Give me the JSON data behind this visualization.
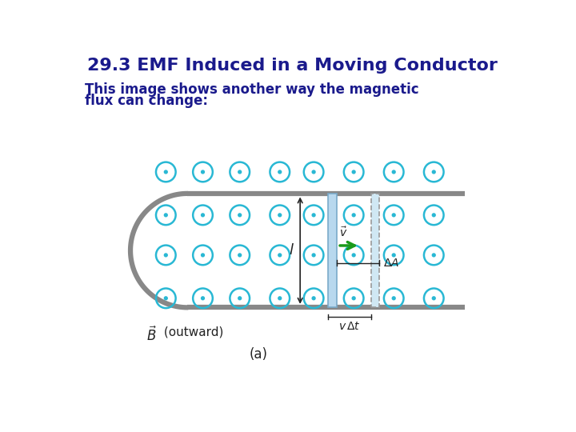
{
  "title": "29.3 EMF Induced in a Moving Conductor",
  "subtitle_line1": "This image shows another way the magnetic",
  "subtitle_line2": "flux can change:",
  "title_color": "#1a1a8c",
  "subtitle_color": "#1a1a8c",
  "bg_color": "#ffffff",
  "circle_color": "#29b8d4",
  "circle_lw": 1.8,
  "dot_r": 2.5,
  "rail_color": "#888888",
  "rail_lw": 4.5,
  "bar_color": "#b8d8ee",
  "bar_edge_color": "#7aaaca",
  "bar_lw": 1.2,
  "arrow_color": "#1a9a1a",
  "dim_color": "#222222",
  "dashed_color": "#999999",
  "fig_width": 7.2,
  "fig_height": 5.4,
  "title_fontsize": 16,
  "subtitle_fontsize": 12
}
